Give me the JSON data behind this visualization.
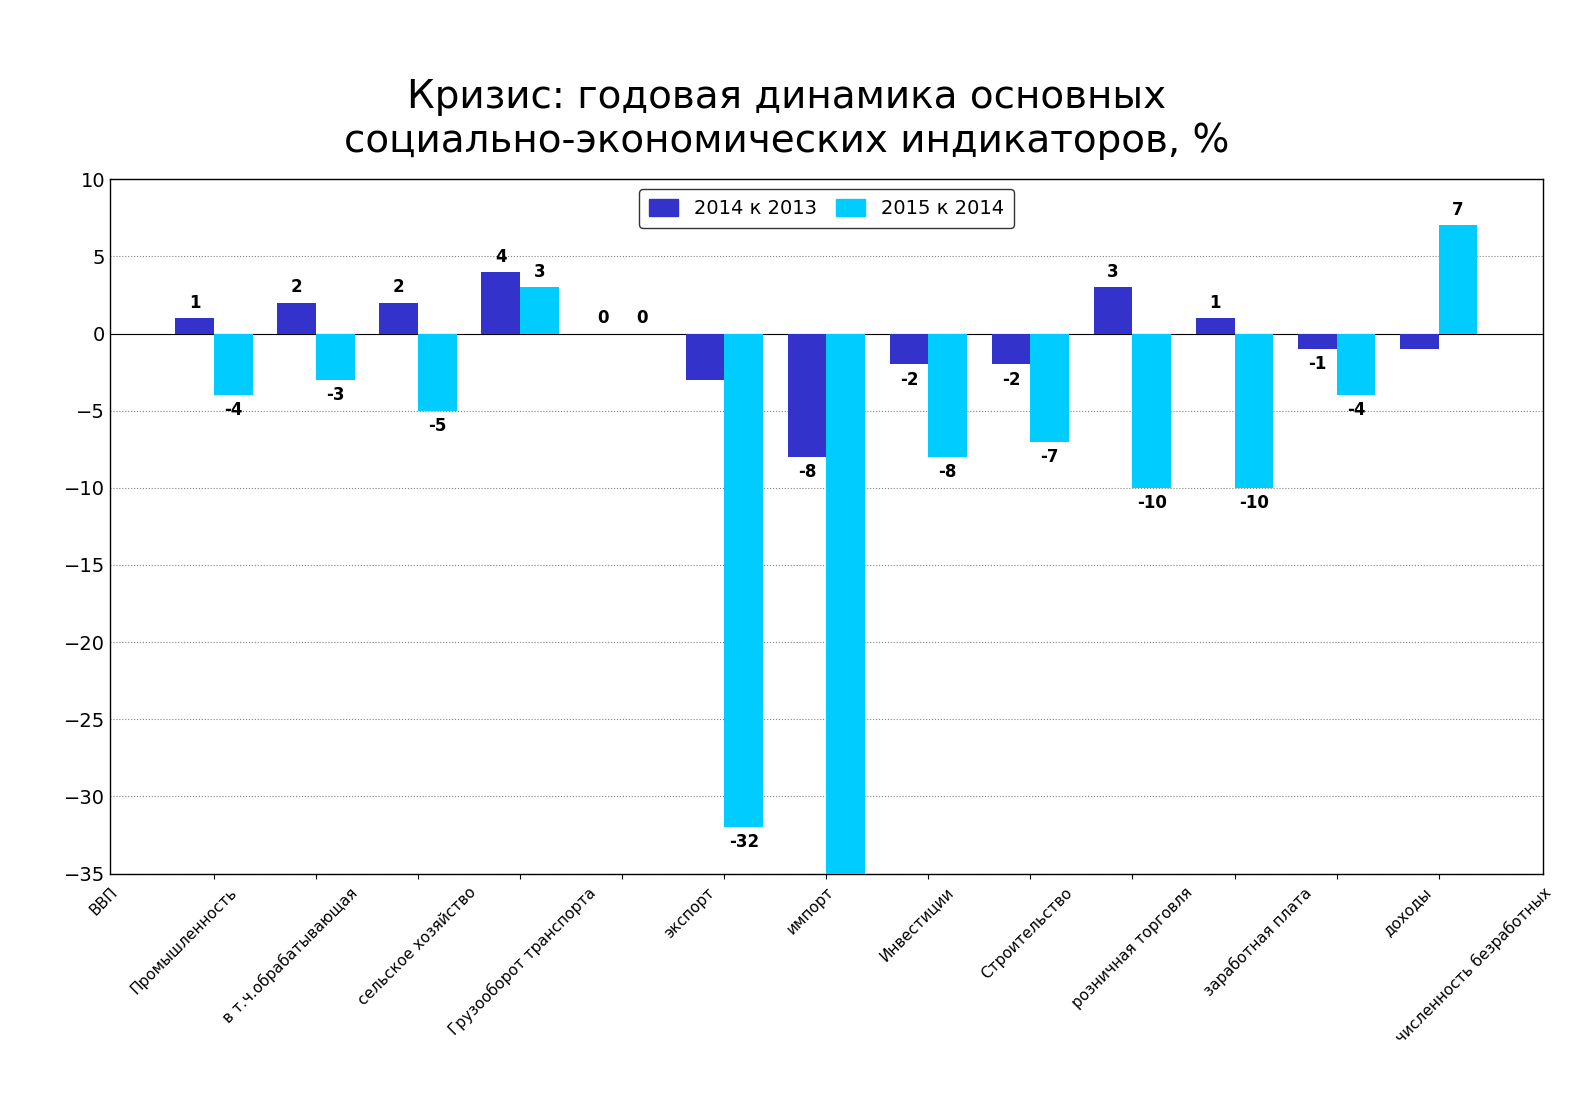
{
  "title": "Кризис: годовая динамика основных\nсоциально-экономических индикаторов, %",
  "categories": [
    "ВВП",
    "Промышленность",
    "в т.ч.обрабатывающая",
    "сельское хозяйство",
    "Грузооборот транспорта",
    "экспорт",
    "импорт",
    "Инвестиции",
    "Строительство",
    "розничная торговля",
    "заработная плата",
    "доходы",
    "численность безработных"
  ],
  "values_2014": [
    1,
    2,
    2,
    4,
    0,
    -3,
    -8,
    -2,
    -2,
    3,
    1,
    -1,
    -1
  ],
  "values_2015": [
    -4,
    -3,
    -5,
    3,
    0,
    -32,
    -36,
    -8,
    -7,
    -10,
    -10,
    -4,
    7
  ],
  "labels_2014": [
    "1",
    "2",
    "2",
    "4",
    "0",
    "",
    "-8",
    "-2",
    "-2",
    "3",
    "1",
    "-1",
    ""
  ],
  "labels_2015": [
    "-4",
    "-3",
    "-5",
    "3",
    "0",
    "-32",
    "",
    "-8",
    "-7",
    "-10",
    "-10",
    "-4",
    "7"
  ],
  "color_2014": "#3333CC",
  "color_2015": "#00CCFF",
  "legend_2014": "2014 к 2013",
  "legend_2015": "2015 к 2014",
  "ylim": [
    -35,
    10
  ],
  "yticks": [
    -35,
    -30,
    -25,
    -20,
    -15,
    -10,
    -5,
    0,
    5,
    10
  ],
  "background_color": "#FFFFFF",
  "title_fontsize": 28
}
